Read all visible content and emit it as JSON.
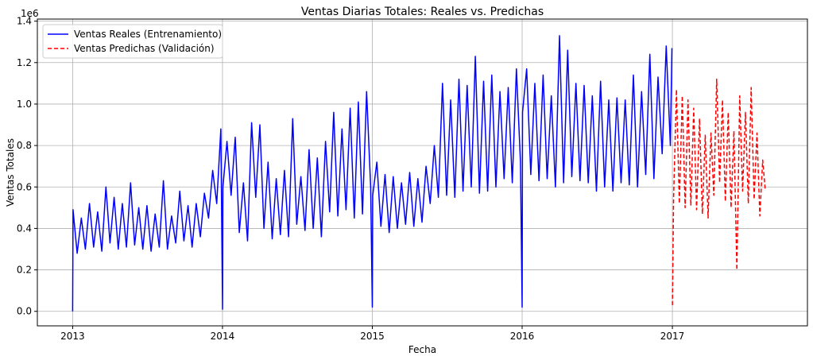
{
  "chart_data": {
    "type": "line",
    "title": "Ventas Diarias Totales: Reales vs. Predichas",
    "xlabel": "Fecha",
    "ylabel": "Ventas Totales",
    "y_offset_label": "1e6",
    "y_scale_factor": 1000000,
    "xlim": [
      "2012-10-07",
      "2017-11-26"
    ],
    "ylim": [
      -0.07,
      1.41
    ],
    "x_ticks": [
      "2013",
      "2014",
      "2015",
      "2016",
      "2017"
    ],
    "y_ticks": [
      "0.0",
      "0.2",
      "0.4",
      "0.6",
      "0.8",
      "1.0",
      "1.2",
      "1.4"
    ],
    "grid": true,
    "legend_position": "upper left",
    "series": [
      {
        "name": "Ventas Reales (Entrenamiento)",
        "color": "#0000ff",
        "style": "solid",
        "x": [
          "2013-01-01",
          "2013-01-02",
          "2013-01-12",
          "2013-01-22",
          "2013-02-01",
          "2013-02-11",
          "2013-02-21",
          "2013-03-03",
          "2013-03-13",
          "2013-03-23",
          "2013-04-02",
          "2013-04-12",
          "2013-04-22",
          "2013-05-02",
          "2013-05-12",
          "2013-05-22",
          "2013-06-01",
          "2013-06-11",
          "2013-06-21",
          "2013-07-01",
          "2013-07-11",
          "2013-07-21",
          "2013-07-31",
          "2013-08-10",
          "2013-08-20",
          "2013-08-30",
          "2013-09-09",
          "2013-09-19",
          "2013-09-29",
          "2013-10-09",
          "2013-10-19",
          "2013-10-29",
          "2013-11-08",
          "2013-11-18",
          "2013-11-28",
          "2013-12-08",
          "2013-12-18",
          "2013-12-28",
          "2014-01-01",
          "2014-01-02",
          "2014-01-12",
          "2014-01-22",
          "2014-02-01",
          "2014-02-11",
          "2014-02-21",
          "2014-03-03",
          "2014-03-13",
          "2014-03-23",
          "2014-04-02",
          "2014-04-12",
          "2014-04-22",
          "2014-05-02",
          "2014-05-12",
          "2014-05-22",
          "2014-06-01",
          "2014-06-11",
          "2014-06-21",
          "2014-07-01",
          "2014-07-11",
          "2014-07-21",
          "2014-07-31",
          "2014-08-10",
          "2014-08-20",
          "2014-08-30",
          "2014-09-09",
          "2014-09-19",
          "2014-09-29",
          "2014-10-09",
          "2014-10-19",
          "2014-10-29",
          "2014-11-08",
          "2014-11-18",
          "2014-11-28",
          "2014-12-08",
          "2014-12-18",
          "2014-12-28",
          "2015-01-01",
          "2015-01-02",
          "2015-01-12",
          "2015-01-22",
          "2015-02-01",
          "2015-02-11",
          "2015-02-21",
          "2015-03-03",
          "2015-03-13",
          "2015-03-23",
          "2015-04-02",
          "2015-04-12",
          "2015-04-22",
          "2015-05-02",
          "2015-05-12",
          "2015-05-22",
          "2015-06-01",
          "2015-06-11",
          "2015-06-21",
          "2015-07-01",
          "2015-07-11",
          "2015-07-21",
          "2015-07-31",
          "2015-08-10",
          "2015-08-20",
          "2015-08-30",
          "2015-09-09",
          "2015-09-19",
          "2015-09-29",
          "2015-10-09",
          "2015-10-19",
          "2015-10-29",
          "2015-11-08",
          "2015-11-18",
          "2015-11-28",
          "2015-12-08",
          "2015-12-18",
          "2015-12-28",
          "2016-01-01",
          "2016-01-02",
          "2016-01-12",
          "2016-01-22",
          "2016-02-01",
          "2016-02-11",
          "2016-02-21",
          "2016-03-02",
          "2016-03-12",
          "2016-03-22",
          "2016-04-01",
          "2016-04-11",
          "2016-04-21",
          "2016-05-01",
          "2016-05-11",
          "2016-05-21",
          "2016-05-31",
          "2016-06-10",
          "2016-06-20",
          "2016-06-30",
          "2016-07-10",
          "2016-07-20",
          "2016-07-30",
          "2016-08-09",
          "2016-08-19",
          "2016-08-29",
          "2016-09-08",
          "2016-09-18",
          "2016-09-28",
          "2016-10-08",
          "2016-10-18",
          "2016-10-28",
          "2016-11-07",
          "2016-11-17",
          "2016-11-27",
          "2016-12-07",
          "2016-12-17",
          "2016-12-27",
          "2016-12-31"
        ],
        "y": [
          0.0,
          0.49,
          0.28,
          0.45,
          0.3,
          0.52,
          0.31,
          0.48,
          0.29,
          0.6,
          0.33,
          0.55,
          0.3,
          0.52,
          0.31,
          0.62,
          0.32,
          0.5,
          0.3,
          0.51,
          0.29,
          0.47,
          0.31,
          0.63,
          0.3,
          0.46,
          0.33,
          0.58,
          0.34,
          0.51,
          0.31,
          0.52,
          0.36,
          0.57,
          0.45,
          0.68,
          0.52,
          0.88,
          0.01,
          0.6,
          0.82,
          0.56,
          0.84,
          0.38,
          0.62,
          0.34,
          0.91,
          0.55,
          0.9,
          0.4,
          0.72,
          0.35,
          0.64,
          0.37,
          0.68,
          0.36,
          0.93,
          0.42,
          0.65,
          0.39,
          0.78,
          0.4,
          0.74,
          0.36,
          0.82,
          0.48,
          0.96,
          0.46,
          0.88,
          0.49,
          0.98,
          0.45,
          1.01,
          0.47,
          1.06,
          0.6,
          0.02,
          0.56,
          0.72,
          0.41,
          0.66,
          0.38,
          0.65,
          0.4,
          0.62,
          0.42,
          0.67,
          0.41,
          0.64,
          0.43,
          0.7,
          0.52,
          0.8,
          0.55,
          1.1,
          0.56,
          1.02,
          0.55,
          1.12,
          0.58,
          1.09,
          0.6,
          1.23,
          0.57,
          1.11,
          0.58,
          1.14,
          0.6,
          1.06,
          0.64,
          1.08,
          0.62,
          1.17,
          0.72,
          0.02,
          0.96,
          1.17,
          0.66,
          1.1,
          0.63,
          1.14,
          0.64,
          1.04,
          0.6,
          1.33,
          0.62,
          1.26,
          0.65,
          1.1,
          0.63,
          1.09,
          0.62,
          1.04,
          0.58,
          1.11,
          0.6,
          1.02,
          0.58,
          1.03,
          0.62,
          1.02,
          0.61,
          1.14,
          0.6,
          1.06,
          0.66,
          1.24,
          0.64,
          1.13,
          0.76,
          1.28,
          0.8,
          1.27
        ]
      },
      {
        "name": "Ventas Predichas (Validación)",
        "color": "#ff0000",
        "style": "dashed",
        "x": [
          "2017-01-01",
          "2017-01-04",
          "2017-01-11",
          "2017-01-18",
          "2017-01-25",
          "2017-02-01",
          "2017-02-08",
          "2017-02-15",
          "2017-02-22",
          "2017-03-01",
          "2017-03-08",
          "2017-03-15",
          "2017-03-22",
          "2017-03-29",
          "2017-04-05",
          "2017-04-12",
          "2017-04-19",
          "2017-04-26",
          "2017-05-03",
          "2017-05-10",
          "2017-05-17",
          "2017-05-24",
          "2017-05-31",
          "2017-06-07",
          "2017-06-14",
          "2017-06-21",
          "2017-06-28",
          "2017-07-05",
          "2017-07-12",
          "2017-07-19",
          "2017-07-26",
          "2017-08-02",
          "2017-08-09",
          "2017-08-15"
        ],
        "y": [
          0.03,
          0.55,
          1.07,
          0.52,
          1.04,
          0.5,
          1.02,
          0.51,
          0.98,
          0.49,
          0.93,
          0.47,
          0.85,
          0.45,
          0.86,
          0.56,
          1.12,
          0.62,
          1.02,
          0.53,
          0.96,
          0.5,
          0.87,
          0.2,
          1.04,
          0.58,
          0.96,
          0.52,
          1.08,
          0.54,
          0.86,
          0.46,
          0.73,
          0.59
        ]
      }
    ]
  }
}
